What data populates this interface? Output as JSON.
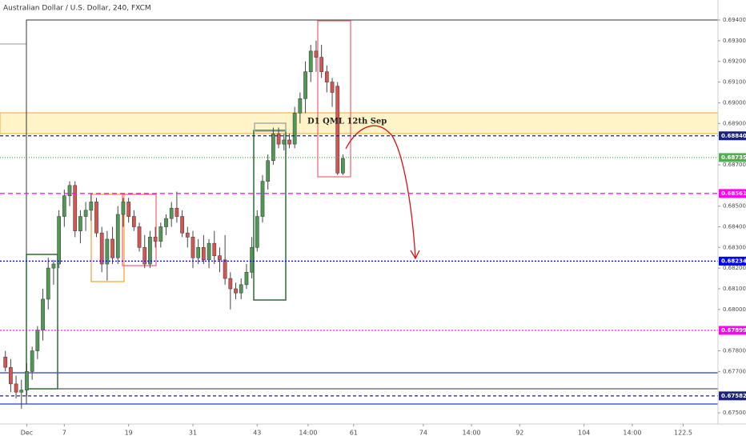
{
  "chart_data": {
    "type": "candlestick",
    "title": "Australian Dollar / U.S. Dollar, 240, FXCM",
    "annotation": "D1 QML 12th Sep",
    "up_color": "#4e9a52",
    "down_color": "#d9534f",
    "x": [
      -4,
      -3,
      -2,
      -1,
      0,
      1,
      2,
      3,
      4,
      5,
      6,
      7,
      8,
      9,
      10,
      11,
      12,
      13,
      14,
      15,
      16,
      17,
      18,
      19,
      20,
      21,
      22,
      23,
      24,
      25,
      26,
      27,
      28,
      29,
      30,
      31,
      32,
      33,
      34,
      35,
      36,
      37,
      38,
      39,
      40,
      41,
      42,
      43,
      44,
      45,
      46,
      47,
      48,
      49,
      50,
      51,
      52,
      53,
      54,
      55,
      56,
      57,
      58,
      59
    ],
    "open": [
      0.6777,
      0.6772,
      0.6764,
      0.676,
      0.6761,
      0.677,
      0.678,
      0.679,
      0.6805,
      0.682,
      0.6822,
      0.6845,
      0.6855,
      0.686,
      0.6838,
      0.6845,
      0.6848,
      0.6852,
      0.6837,
      0.6822,
      0.6834,
      0.6825,
      0.6846,
      0.6852,
      0.6845,
      0.684,
      0.683,
      0.6822,
      0.6835,
      0.6833,
      0.684,
      0.6844,
      0.6849,
      0.6845,
      0.6837,
      0.6835,
      0.6825,
      0.683,
      0.6824,
      0.6832,
      0.6826,
      0.6824,
      0.6815,
      0.681,
      0.6808,
      0.6812,
      0.6818,
      0.683,
      0.6845,
      0.6862,
      0.6872,
      0.6885,
      0.688,
      0.6882,
      0.688,
      0.6895,
      0.6902,
      0.6915,
      0.6925,
      0.6922,
      0.6915,
      0.691,
      0.6908,
      0.6866
    ],
    "high": [
      0.678,
      0.6776,
      0.6768,
      0.6766,
      0.6774,
      0.6782,
      0.6792,
      0.681,
      0.6825,
      0.6824,
      0.6848,
      0.6858,
      0.6862,
      0.6862,
      0.6848,
      0.6852,
      0.6856,
      0.6854,
      0.684,
      0.6838,
      0.684,
      0.685,
      0.6854,
      0.6854,
      0.6848,
      0.6842,
      0.6836,
      0.6838,
      0.684,
      0.6842,
      0.6846,
      0.6852,
      0.6857,
      0.6848,
      0.684,
      0.6838,
      0.6834,
      0.6836,
      0.6834,
      0.6838,
      0.683,
      0.6836,
      0.6818,
      0.6813,
      0.6815,
      0.6822,
      0.6835,
      0.6848,
      0.6865,
      0.6875,
      0.6888,
      0.6888,
      0.6885,
      0.6885,
      0.6898,
      0.6905,
      0.692,
      0.6928,
      0.693,
      0.6928,
      0.6918,
      0.6912,
      0.691,
      0.6875
    ],
    "low": [
      0.677,
      0.676,
      0.6757,
      0.6752,
      0.6758,
      0.6766,
      0.6776,
      0.6785,
      0.68,
      0.6812,
      0.682,
      0.684,
      0.685,
      0.6835,
      0.6832,
      0.6838,
      0.6843,
      0.6835,
      0.6818,
      0.6814,
      0.6822,
      0.6822,
      0.684,
      0.6842,
      0.6838,
      0.6828,
      0.682,
      0.682,
      0.683,
      0.683,
      0.6836,
      0.684,
      0.6842,
      0.6835,
      0.683,
      0.682,
      0.6822,
      0.6822,
      0.682,
      0.6822,
      0.6818,
      0.6812,
      0.68,
      0.6805,
      0.6805,
      0.681,
      0.6815,
      0.6828,
      0.6842,
      0.6858,
      0.687,
      0.6878,
      0.6877,
      0.6878,
      0.6878,
      0.689,
      0.6895,
      0.691,
      0.6915,
      0.6912,
      0.6905,
      0.6898,
      0.6865,
      0.6865
    ],
    "close": [
      0.6772,
      0.6764,
      0.676,
      0.6761,
      0.677,
      0.678,
      0.679,
      0.6805,
      0.682,
      0.6822,
      0.6845,
      0.6855,
      0.686,
      0.6838,
      0.6845,
      0.6848,
      0.6852,
      0.6837,
      0.6822,
      0.6834,
      0.6825,
      0.6846,
      0.6852,
      0.6845,
      0.684,
      0.683,
      0.6822,
      0.6835,
      0.6833,
      0.684,
      0.6844,
      0.6849,
      0.6845,
      0.6837,
      0.6835,
      0.6825,
      0.683,
      0.6824,
      0.6832,
      0.6826,
      0.6824,
      0.6815,
      0.681,
      0.6808,
      0.6812,
      0.6818,
      0.683,
      0.6845,
      0.6862,
      0.6872,
      0.6885,
      0.688,
      0.6882,
      0.688,
      0.6895,
      0.6902,
      0.6915,
      0.6925,
      0.6922,
      0.6915,
      0.691,
      0.6905,
      0.6866,
      0.6873
    ],
    "xlim": [
      -5,
      129
    ],
    "xticks": [
      {
        "value": 0,
        "label": "Dec"
      },
      7,
      19,
      31,
      43,
      {
        "value": 52.5,
        "label": "14:00"
      },
      61,
      74,
      {
        "value": 83,
        "label": "14:00"
      },
      92,
      104,
      {
        "value": 113,
        "label": "14:00"
      },
      122.5
    ],
    "ylim": [
      0.67446,
      0.69497
    ],
    "yticks": [
      {
        "value": 0.694,
        "label": "0.69400"
      },
      {
        "value": 0.693,
        "label": "0.69300"
      },
      {
        "value": 0.692,
        "label": "0.69200"
      },
      {
        "value": 0.691,
        "label": "0.69100"
      },
      {
        "value": 0.69,
        "label": "0.69000"
      },
      {
        "value": 0.689,
        "label": "0.68900"
      },
      {
        "value": 0.687,
        "label": "0.68700"
      },
      {
        "value": 0.685,
        "label": "0.68500"
      },
      {
        "value": 0.684,
        "label": "0.68400"
      },
      {
        "value": 0.683,
        "label": "0.68300"
      },
      {
        "value": 0.682,
        "label": "0.68200"
      },
      {
        "value": 0.681,
        "label": "0.68100"
      },
      {
        "value": 0.68,
        "label": "0.68000"
      },
      {
        "value": 0.678,
        "label": "0.67800"
      },
      {
        "value": 0.677,
        "label": "0.67700"
      },
      {
        "value": 0.675,
        "label": "0.67500"
      }
    ],
    "price_lines": [
      {
        "value": 0.6884,
        "label": "0.68840",
        "color": "#1a237e",
        "dash": "4,3"
      },
      {
        "value": 0.68735,
        "label": "0.68735",
        "color": "#4caf50",
        "dash": "1,2"
      },
      {
        "value": 0.68561,
        "label": "0.68561",
        "color": "#ff00ff",
        "dash": "6,4"
      },
      {
        "value": 0.68234,
        "label": "0.68234",
        "color": "#0000ff",
        "dash": "2,2"
      },
      {
        "value": 0.67899,
        "label": "0.67899",
        "color": "#ff00ff",
        "dash": "2,2"
      },
      {
        "value": 0.67582,
        "label": "0.67582",
        "color": "#1a237e",
        "dash": "4,3"
      }
    ],
    "grid": false
  }
}
